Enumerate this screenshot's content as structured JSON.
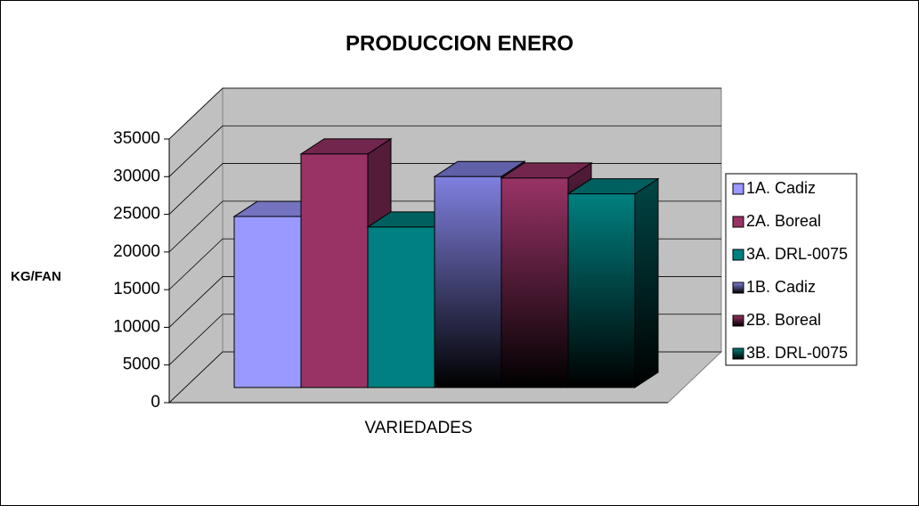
{
  "chart_data": {
    "type": "bar3d",
    "title": "PRODUCCION ENERO",
    "y_label": "KG/FAN",
    "x_label": "VARIEDADES",
    "series": [
      {
        "name": "1A. Cadiz",
        "color": "#9999ff",
        "values": [
          22700
        ]
      },
      {
        "name": "2A. Boreal",
        "color": "#993366",
        "values": [
          31000
        ]
      },
      {
        "name": "3A. DRL-0075",
        "color": "#008080",
        "values": [
          21300
        ]
      },
      {
        "name": "1B. Cadiz",
        "color": "#8080e0",
        "fill_style": "gradient",
        "values": [
          28000
        ]
      },
      {
        "name": "2B. Boreal",
        "color": "#993366",
        "fill_style": "gradient",
        "values": [
          27800
        ]
      },
      {
        "name": "3B. DRL-0075",
        "color": "#008080",
        "fill_style": "gradient",
        "values": [
          25700
        ]
      }
    ],
    "ylim": [
      0,
      35000
    ],
    "yticks": [
      0,
      5000,
      10000,
      15000,
      20000,
      25000,
      30000,
      35000
    ],
    "grid": true,
    "legend": "right"
  }
}
